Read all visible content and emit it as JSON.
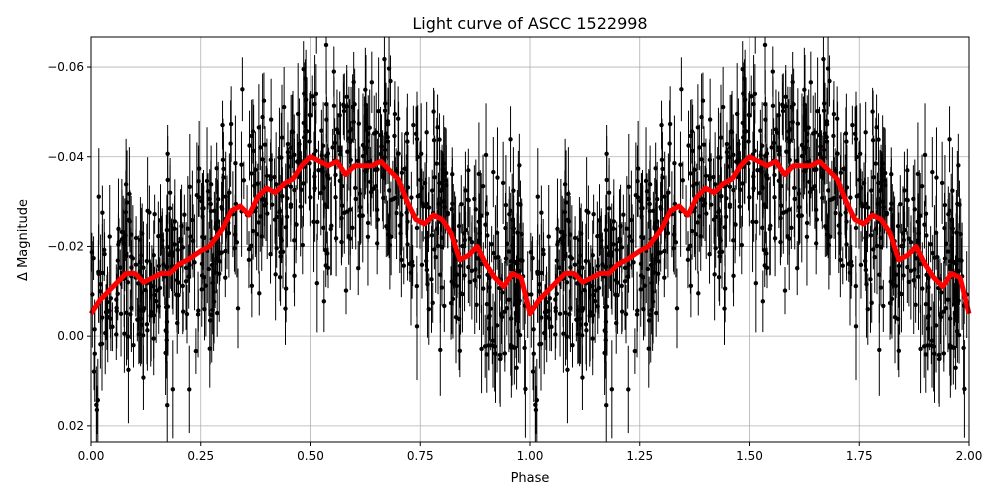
{
  "chart_data": {
    "type": "scatter",
    "title": "Light curve of ASCC 1522998",
    "xlabel": "Phase",
    "ylabel": "Δ Magnitude",
    "xlim": [
      0,
      2
    ],
    "ylim": [
      0.0236,
      -0.0667
    ],
    "y_inverted": true,
    "grid": true,
    "xticks": [
      "0.00",
      "0.25",
      "0.50",
      "0.75",
      "1.00",
      "1.25",
      "1.50",
      "1.75",
      "2.00"
    ],
    "xtick_values": [
      0,
      0.25,
      0.5,
      0.75,
      1.0,
      1.25,
      1.5,
      1.75,
      2.0
    ],
    "yticks": [
      "−0.06",
      "−0.04",
      "−0.02",
      "0.00",
      "0.02"
    ],
    "ytick_values": [
      -0.06,
      -0.04,
      -0.02,
      0.0,
      0.02
    ],
    "observations": {
      "marker_color": "#000000",
      "error_bars": true,
      "repeated_each_phase_cycle": true
    },
    "model": {
      "color": "#ff0000",
      "phase": [
        0,
        0.02,
        0.04,
        0.06,
        0.08,
        0.1,
        0.12,
        0.14,
        0.16,
        0.18,
        0.2,
        0.22,
        0.25,
        0.27,
        0.3,
        0.32,
        0.34,
        0.36,
        0.38,
        0.4,
        0.42,
        0.44,
        0.46,
        0.48,
        0.5,
        0.52,
        0.54,
        0.56,
        0.58,
        0.6,
        0.62,
        0.64,
        0.66,
        0.68,
        0.7,
        0.72,
        0.74,
        0.76,
        0.78,
        0.8,
        0.82,
        0.84,
        0.86,
        0.88,
        0.9,
        0.92,
        0.94,
        0.96,
        0.98,
        1.0
      ],
      "magnitude": [
        -0.005,
        -0.008,
        -0.01,
        -0.012,
        -0.014,
        -0.014,
        -0.012,
        -0.013,
        -0.014,
        -0.014,
        -0.016,
        -0.017,
        -0.019,
        -0.02,
        -0.024,
        -0.028,
        -0.029,
        -0.027,
        -0.031,
        -0.033,
        -0.032,
        -0.034,
        -0.035,
        -0.038,
        -0.04,
        -0.039,
        -0.038,
        -0.039,
        -0.036,
        -0.038,
        -0.038,
        -0.038,
        -0.039,
        -0.037,
        -0.035,
        -0.03,
        -0.026,
        -0.025,
        -0.027,
        -0.026,
        -0.023,
        -0.017,
        -0.018,
        -0.02,
        -0.016,
        -0.013,
        -0.011,
        -0.014,
        -0.013,
        -0.005
      ]
    }
  }
}
